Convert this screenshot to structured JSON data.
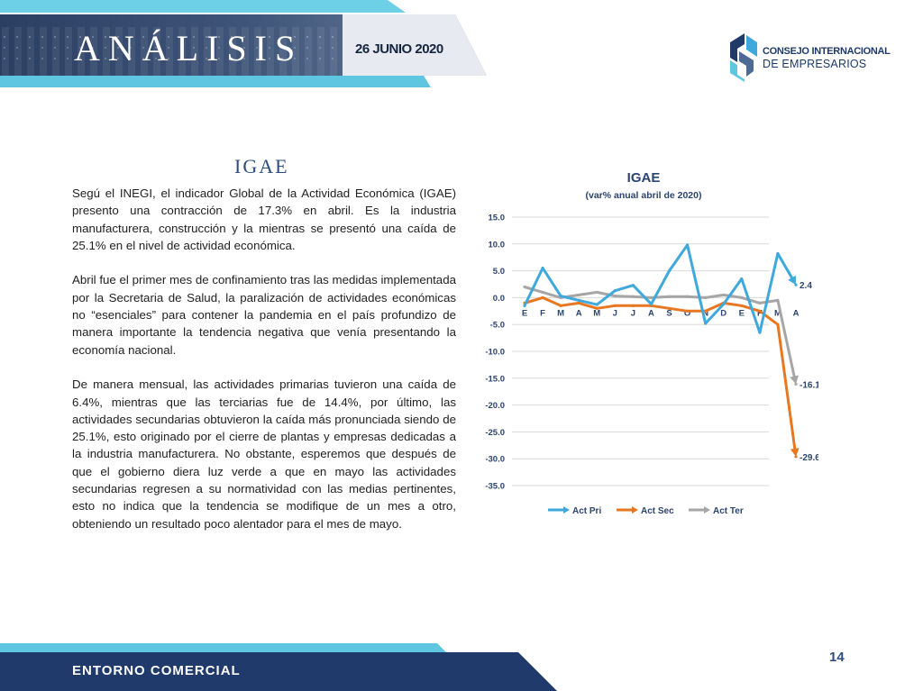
{
  "header": {
    "title": "ANÁLISIS",
    "date": "26 JUNIO 2020"
  },
  "logo": {
    "line1": "CONSEJO INTERNACIONAL",
    "line2": "DE EMPRESARIOS"
  },
  "section": {
    "title": "IGAE"
  },
  "article": {
    "paragraphs": [
      "Segú el INEGI, el indicador Global de la Actividad Económica (IGAE) presento una contracción de 17.3% en abril. Es la industria manufacturera, construcción y la mientras se presentó una caída de 25.1% en el nivel de actividad económica.",
      "Abril fue el primer mes de confinamiento tras las medidas implementada por la Secretaria de Salud, la paralización de actividades económicas no “esenciales” para contener la pandemia en el país profundizo de manera importante la tendencia negativa que venía presentando la economía nacional.",
      "De manera mensual, las actividades primarias tuvieron una caída de 6.4%, mientras que las terciarias fue de 14.4%, por último, las actividades secundarias obtuvieron la caída más pronunciada siendo de 25.1%, esto originado por el cierre de plantas y empresas dedicadas a la industria manufacturera. No obstante, esperemos que después de que el gobierno diera luz verde a que en mayo las actividades secundarias regresen a su normatividad con las medias pertinentes, esto no indica que la tendencia se modifique de un mes a otro, obteniendo un resultado poco alentador para el mes de mayo."
    ]
  },
  "footer": {
    "label": "ENTORNO COMERCIAL",
    "page_number": "14"
  },
  "colors": {
    "navy": "#1f3a6b",
    "accent_cyan": "#5ec6e0",
    "act_pri": "#3fa9dc",
    "act_sec": "#e87722",
    "act_ter": "#a6a6a6"
  },
  "chart_data": {
    "type": "line",
    "title": "IGAE",
    "subtitle": "(var% anual  abril de 2020)",
    "categories": [
      "E",
      "F",
      "M",
      "A",
      "M",
      "J",
      "J",
      "A",
      "S",
      "O",
      "N",
      "D",
      "E",
      "F",
      "M",
      "A"
    ],
    "ylim": [
      -35,
      15
    ],
    "yticks": [
      "15.0",
      "10.0",
      "5.0",
      "0.0",
      "-5.0",
      "-10.0",
      "-15.0",
      "-20.0",
      "-25.0",
      "-30.0",
      "-35.0"
    ],
    "grid": true,
    "legend": "bottom",
    "series": [
      {
        "name": "Act Pri",
        "color": "#3fa9dc",
        "values": [
          -1.5,
          5.5,
          0.3,
          -0.5,
          -1.3,
          1.3,
          2.3,
          -1.2,
          5.0,
          9.8,
          -4.8,
          -1.2,
          3.5,
          -6.5,
          8.2,
          2.4
        ]
      },
      {
        "name": "Act Sec",
        "color": "#e87722",
        "values": [
          -1.0,
          0.0,
          -1.5,
          -1.0,
          -2.0,
          -1.5,
          -1.5,
          -1.5,
          -2.0,
          -2.5,
          -2.5,
          -1.0,
          -1.5,
          -2.5,
          -5.0,
          -29.6
        ]
      },
      {
        "name": "Act Ter",
        "color": "#a6a6a6",
        "values": [
          2.0,
          1.0,
          0.0,
          0.5,
          1.0,
          0.3,
          0.2,
          0.0,
          0.2,
          0.2,
          0.0,
          0.5,
          0.0,
          -1.0,
          -0.5,
          -16.1
        ]
      }
    ],
    "end_labels": [
      "2.4",
      "-29.6",
      "-16.1"
    ]
  }
}
